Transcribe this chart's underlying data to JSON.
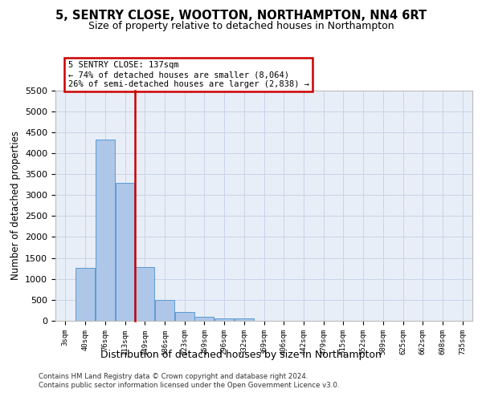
{
  "title": "5, SENTRY CLOSE, WOOTTON, NORTHAMPTON, NN4 6RT",
  "subtitle": "Size of property relative to detached houses in Northampton",
  "xlabel": "Distribution of detached houses by size in Northampton",
  "ylabel": "Number of detached properties",
  "footer_line1": "Contains HM Land Registry data © Crown copyright and database right 2024.",
  "footer_line2": "Contains public sector information licensed under the Open Government Licence v3.0.",
  "annotation_line1": "5 SENTRY CLOSE: 137sqm",
  "annotation_line2": "← 74% of detached houses are smaller (8,064)",
  "annotation_line3": "26% of semi-detached houses are larger (2,838) →",
  "bar_color": "#aec6e8",
  "bar_edge_color": "#5b9bd5",
  "bg_color": "#e8eef7",
  "grid_color": "#c8d4e8",
  "red_line_color": "#cc0000",
  "categories": [
    "3sqm",
    "40sqm",
    "76sqm",
    "113sqm",
    "149sqm",
    "186sqm",
    "223sqm",
    "259sqm",
    "296sqm",
    "332sqm",
    "369sqm",
    "406sqm",
    "442sqm",
    "479sqm",
    "515sqm",
    "552sqm",
    "589sqm",
    "625sqm",
    "662sqm",
    "698sqm",
    "735sqm"
  ],
  "values": [
    0,
    1260,
    4330,
    3300,
    1280,
    490,
    210,
    90,
    65,
    55,
    0,
    0,
    0,
    0,
    0,
    0,
    0,
    0,
    0,
    0,
    0
  ],
  "ylim": [
    0,
    5500
  ],
  "yticks": [
    0,
    500,
    1000,
    1500,
    2000,
    2500,
    3000,
    3500,
    4000,
    4500,
    5000,
    5500
  ],
  "red_line_x": 3.5
}
